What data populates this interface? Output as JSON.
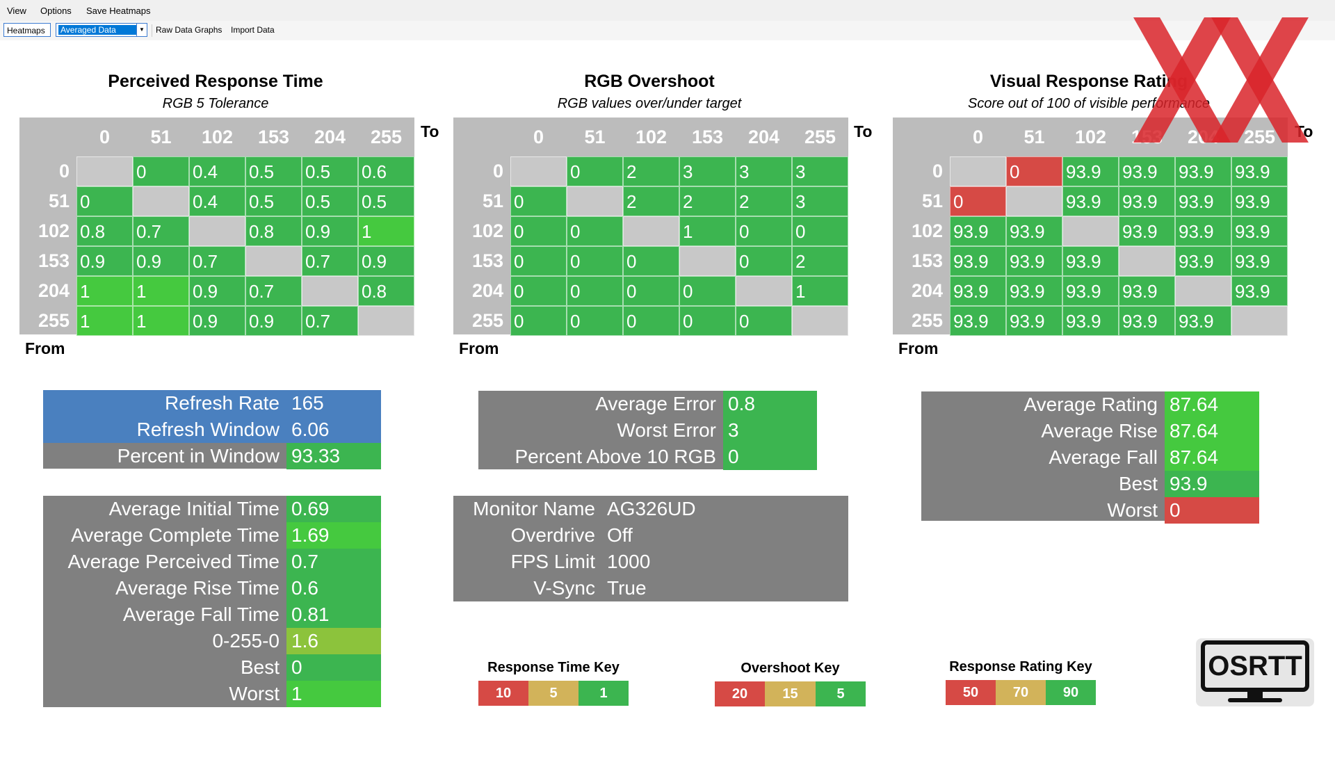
{
  "menu": {
    "view": "View",
    "options": "Options",
    "save": "Save Heatmaps"
  },
  "toolbar": {
    "heatmaps": "Heatmaps",
    "combo_value": "Averaged Data",
    "raw": "Raw Data Graphs",
    "import": "Import Data"
  },
  "axes": {
    "to": "To",
    "from": "From",
    "levels": [
      "0",
      "51",
      "102",
      "153",
      "204",
      "255"
    ]
  },
  "colors": {
    "green": "#3cb550",
    "bright_green": "#45c93f",
    "yellow_green": "#8cc33c",
    "red": "#d64a45",
    "tan": "#d2b35a",
    "blue": "#4a80bf",
    "gray": "#808080",
    "light_gray": "#c8c8c8"
  },
  "heatmaps": [
    {
      "title": "Perceived Response Time",
      "subtitle": "RGB 5 Tolerance",
      "rows": [
        [
          "",
          "0",
          "0.4",
          "0.5",
          "0.5",
          "0.6"
        ],
        [
          "0",
          "",
          "0.4",
          "0.5",
          "0.5",
          "0.5"
        ],
        [
          "0.8",
          "0.7",
          "",
          "0.8",
          "0.9",
          "1"
        ],
        [
          "0.9",
          "0.9",
          "0.7",
          "",
          "0.7",
          "0.9"
        ],
        [
          "1",
          "1",
          "0.9",
          "0.7",
          "",
          "0.8"
        ],
        [
          "1",
          "1",
          "0.9",
          "0.9",
          "0.7",
          ""
        ]
      ]
    },
    {
      "title": "RGB Overshoot",
      "subtitle": "RGB values over/under target",
      "rows": [
        [
          "",
          "0",
          "2",
          "3",
          "3",
          "3"
        ],
        [
          "0",
          "",
          "2",
          "2",
          "2",
          "3"
        ],
        [
          "0",
          "0",
          "",
          "1",
          "0",
          "0"
        ],
        [
          "0",
          "0",
          "0",
          "",
          "0",
          "2"
        ],
        [
          "0",
          "0",
          "0",
          "0",
          "",
          "1"
        ],
        [
          "0",
          "0",
          "0",
          "0",
          "0",
          ""
        ]
      ]
    },
    {
      "title": "Visual Response Rating",
      "subtitle": "Score out of 100 of visible performance",
      "rows": [
        [
          "",
          "0",
          "93.9",
          "93.9",
          "93.9",
          "93.9"
        ],
        [
          "0",
          "",
          "93.9",
          "93.9",
          "93.9",
          "93.9"
        ],
        [
          "93.9",
          "93.9",
          "",
          "93.9",
          "93.9",
          "93.9"
        ],
        [
          "93.9",
          "93.9",
          "93.9",
          "",
          "93.9",
          "93.9"
        ],
        [
          "93.9",
          "93.9",
          "93.9",
          "93.9",
          "",
          "93.9"
        ],
        [
          "93.9",
          "93.9",
          "93.9",
          "93.9",
          "93.9",
          ""
        ]
      ]
    }
  ],
  "refresh": [
    {
      "label": "Refresh Rate",
      "value": "165"
    },
    {
      "label": "Refresh Window",
      "value": "6.06"
    },
    {
      "label": "Percent in Window",
      "value": "93.33"
    }
  ],
  "times": [
    {
      "label": "Average Initial Time",
      "value": "0.69"
    },
    {
      "label": "Average Complete Time",
      "value": "1.69"
    },
    {
      "label": "Average Perceived Time",
      "value": "0.7"
    },
    {
      "label": "Average Rise Time",
      "value": "0.6"
    },
    {
      "label": "Average Fall Time",
      "value": "0.81"
    },
    {
      "label": "0-255-0",
      "value": "1.6"
    },
    {
      "label": "Best",
      "value": "0"
    },
    {
      "label": "Worst",
      "value": "1"
    }
  ],
  "overshoot_stats": [
    {
      "label": "Average Error",
      "value": "0.8"
    },
    {
      "label": "Worst Error",
      "value": "3"
    },
    {
      "label": "Percent Above 10 RGB",
      "value": "0"
    }
  ],
  "monitor": [
    {
      "label": "Monitor Name",
      "value": "AG326UD"
    },
    {
      "label": "Overdrive",
      "value": "Off"
    },
    {
      "label": "FPS Limit",
      "value": "1000"
    },
    {
      "label": "V-Sync",
      "value": "True"
    }
  ],
  "rating_stats": [
    {
      "label": "Average Rating",
      "value": "87.64"
    },
    {
      "label": "Average Rise",
      "value": "87.64"
    },
    {
      "label": "Average Fall",
      "value": "87.64"
    },
    {
      "label": "Best",
      "value": "93.9"
    },
    {
      "label": "Worst",
      "value": "0"
    }
  ],
  "keys": [
    {
      "title": "Response Time Key",
      "values": [
        "10",
        "5",
        "1"
      ]
    },
    {
      "title": "Overshoot Key",
      "values": [
        "20",
        "15",
        "5"
      ]
    },
    {
      "title": "Response Rating Key",
      "values": [
        "50",
        "70",
        "90"
      ]
    }
  ],
  "logo": {
    "text": "OSRTT"
  }
}
